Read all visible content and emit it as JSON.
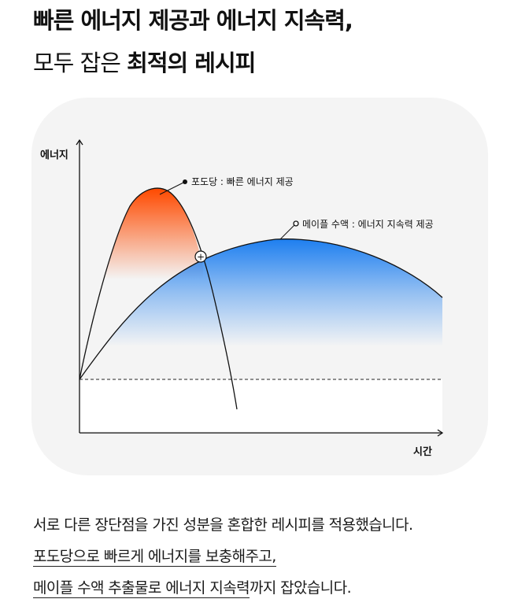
{
  "headline": {
    "line1": "빠른 에너지 제공과 에너지 지속력,",
    "line2_plain": "모두 잡은 ",
    "line2_bold": "최적의 레시피"
  },
  "diagram": {
    "y_axis_label": "에너지",
    "x_axis_label": "시간",
    "glucose_label": "포도당 : 빠른 에너지 제공",
    "maple_label": "메이플 수액 : 에너지 지속력 제공",
    "intersection_symbol": "+",
    "colors": {
      "glucose_peak": "#ff4a00",
      "maple_peak": "#1e7ff0",
      "card_bg": "#f4f4f4",
      "line": "#111111"
    }
  },
  "description": {
    "line1": "서로 다른 장단점을 가진 성분을 혼합한 레시피를 적용했습니다.",
    "line2_underlined": "포도당으로 빠르게 에너지를 보충해주고,",
    "line3_underlined": "메이플 수액 추출물로 에너지 지속력",
    "line3_rest": "까지 잡았습니다."
  }
}
